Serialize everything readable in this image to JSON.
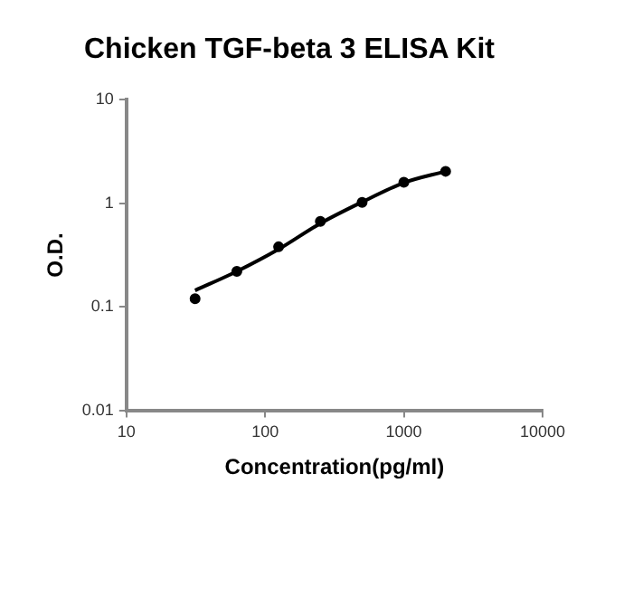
{
  "chart_data": {
    "type": "scatter",
    "title": "Chicken TGF-beta 3 ELISA Kit",
    "xlabel": "Concentration(pg/ml)",
    "ylabel": "O.D.",
    "log": "xy",
    "grid": false,
    "legend": false,
    "marker": "circle",
    "xlim": [
      10,
      10000
    ],
    "xticks": [
      10,
      100,
      1000,
      10000
    ],
    "ylim": [
      0.01,
      10
    ],
    "yticks": [
      0.01,
      0.1,
      1,
      10
    ],
    "series": [
      {
        "color": "#000000",
        "x": [
          31.25,
          62.5,
          125,
          250,
          500,
          1000,
          2000
        ],
        "values": [
          0.12,
          0.22,
          0.38,
          0.67,
          1.02,
          1.6,
          2.04
        ]
      },
      {
        "type": "line",
        "color": "#000000",
        "marker": "none",
        "line_style": "solid",
        "x": [
          31.25,
          62.5,
          125,
          250,
          500,
          1000,
          2000
        ],
        "values": [
          0.144,
          0.22,
          0.36,
          0.64,
          1.03,
          1.58,
          2.04
        ]
      }
    ]
  }
}
